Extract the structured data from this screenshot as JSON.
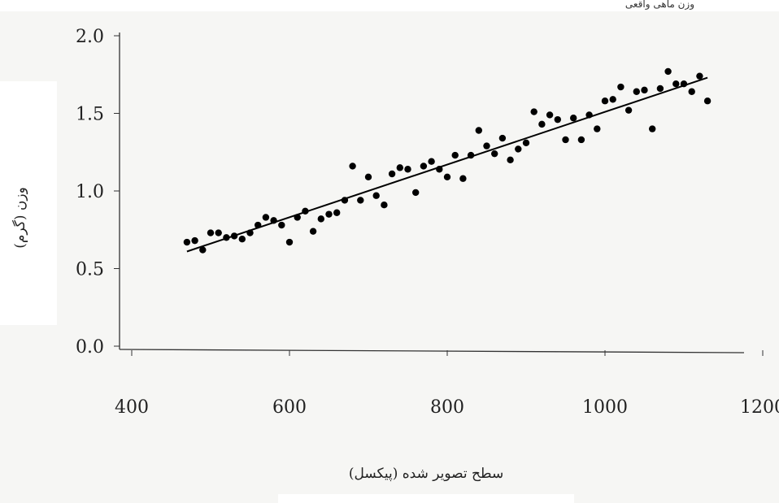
{
  "top_caption": "وزن ماهی واقعی",
  "chart_data": {
    "type": "scatter",
    "title": "",
    "xlabel": "سطح تصویر شده (پیکسل)",
    "ylabel": "وزن (گرم)",
    "xlim": [
      400,
      1200
    ],
    "ylim": [
      0.0,
      2.0
    ],
    "x_tick_labels": [
      "400",
      "600",
      "800",
      "1000",
      "1200"
    ],
    "y_tick_labels": [
      "0.0",
      "0.5",
      "1.0",
      "1.5",
      "2.0"
    ],
    "grid": false,
    "legend": "none",
    "marker_color": "#000000",
    "trendline": {
      "x": [
        470,
        1130
      ],
      "y": [
        0.61,
        1.73
      ]
    },
    "points": [
      {
        "x": 470,
        "y": 0.67
      },
      {
        "x": 480,
        "y": 0.68
      },
      {
        "x": 490,
        "y": 0.62
      },
      {
        "x": 500,
        "y": 0.73
      },
      {
        "x": 510,
        "y": 0.73
      },
      {
        "x": 520,
        "y": 0.7
      },
      {
        "x": 530,
        "y": 0.71
      },
      {
        "x": 540,
        "y": 0.69
      },
      {
        "x": 550,
        "y": 0.73
      },
      {
        "x": 560,
        "y": 0.78
      },
      {
        "x": 570,
        "y": 0.83
      },
      {
        "x": 580,
        "y": 0.81
      },
      {
        "x": 590,
        "y": 0.78
      },
      {
        "x": 600,
        "y": 0.67
      },
      {
        "x": 610,
        "y": 0.83
      },
      {
        "x": 620,
        "y": 0.87
      },
      {
        "x": 630,
        "y": 0.74
      },
      {
        "x": 640,
        "y": 0.82
      },
      {
        "x": 650,
        "y": 0.85
      },
      {
        "x": 660,
        "y": 0.86
      },
      {
        "x": 670,
        "y": 0.94
      },
      {
        "x": 680,
        "y": 1.16
      },
      {
        "x": 690,
        "y": 0.94
      },
      {
        "x": 700,
        "y": 1.09
      },
      {
        "x": 710,
        "y": 0.97
      },
      {
        "x": 720,
        "y": 0.91
      },
      {
        "x": 730,
        "y": 1.11
      },
      {
        "x": 740,
        "y": 1.15
      },
      {
        "x": 750,
        "y": 1.14
      },
      {
        "x": 760,
        "y": 0.99
      },
      {
        "x": 770,
        "y": 1.16
      },
      {
        "x": 780,
        "y": 1.19
      },
      {
        "x": 790,
        "y": 1.14
      },
      {
        "x": 800,
        "y": 1.09
      },
      {
        "x": 810,
        "y": 1.23
      },
      {
        "x": 820,
        "y": 1.08
      },
      {
        "x": 830,
        "y": 1.23
      },
      {
        "x": 840,
        "y": 1.39
      },
      {
        "x": 850,
        "y": 1.29
      },
      {
        "x": 860,
        "y": 1.24
      },
      {
        "x": 870,
        "y": 1.34
      },
      {
        "x": 880,
        "y": 1.2
      },
      {
        "x": 890,
        "y": 1.27
      },
      {
        "x": 900,
        "y": 1.31
      },
      {
        "x": 910,
        "y": 1.51
      },
      {
        "x": 920,
        "y": 1.43
      },
      {
        "x": 930,
        "y": 1.49
      },
      {
        "x": 940,
        "y": 1.46
      },
      {
        "x": 950,
        "y": 1.33
      },
      {
        "x": 960,
        "y": 1.47
      },
      {
        "x": 970,
        "y": 1.33
      },
      {
        "x": 980,
        "y": 1.49
      },
      {
        "x": 990,
        "y": 1.4
      },
      {
        "x": 1000,
        "y": 1.58
      },
      {
        "x": 1010,
        "y": 1.59
      },
      {
        "x": 1020,
        "y": 1.67
      },
      {
        "x": 1030,
        "y": 1.52
      },
      {
        "x": 1040,
        "y": 1.64
      },
      {
        "x": 1050,
        "y": 1.65
      },
      {
        "x": 1060,
        "y": 1.4
      },
      {
        "x": 1070,
        "y": 1.66
      },
      {
        "x": 1080,
        "y": 1.77
      },
      {
        "x": 1090,
        "y": 1.69
      },
      {
        "x": 1100,
        "y": 1.69
      },
      {
        "x": 1110,
        "y": 1.64
      },
      {
        "x": 1120,
        "y": 1.74
      },
      {
        "x": 1130,
        "y": 1.58
      }
    ]
  }
}
